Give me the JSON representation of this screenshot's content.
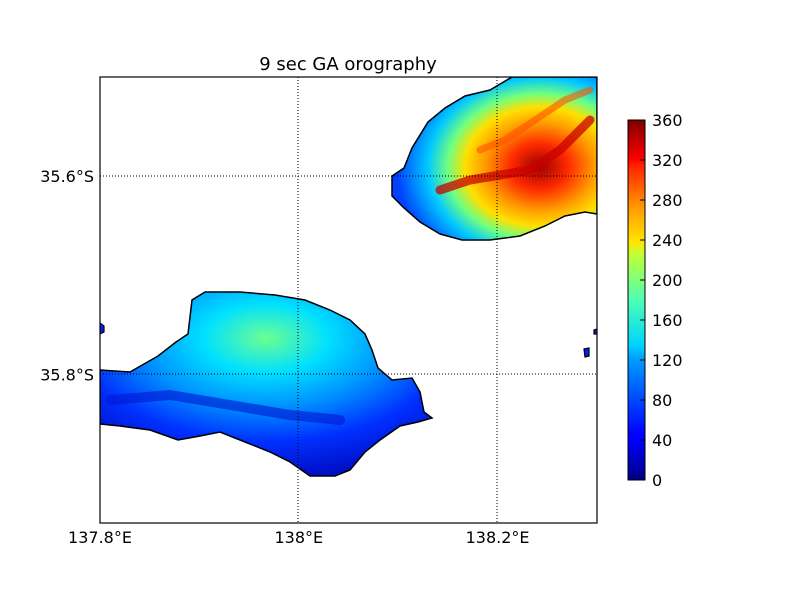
{
  "title": "9 sec GA orography",
  "axes": {
    "lon_ticks": [
      {
        "value": 137.8,
        "label": "137.8°E"
      },
      {
        "value": 138.0,
        "label": "138°E"
      },
      {
        "value": 138.2,
        "label": "138.2°E"
      }
    ],
    "lat_ticks": [
      {
        "value": -35.6,
        "label": "35.6°S"
      },
      {
        "value": -35.8,
        "label": "35.8°S"
      }
    ],
    "lon_range": [
      137.8,
      138.3
    ],
    "lat_range": [
      -35.95,
      -35.5
    ],
    "gridlines": "dotted"
  },
  "colorbar": {
    "colormap": "jet",
    "range": [
      0,
      360
    ],
    "ticks": [
      "0",
      "40",
      "80",
      "120",
      "160",
      "200",
      "240",
      "280",
      "320",
      "360"
    ],
    "placement": "right"
  },
  "chart_data": {
    "type": "heatmap",
    "title": "9 sec GA orography",
    "quantity": "terrain elevation",
    "colormap": "jet",
    "value_range": [
      0,
      360
    ],
    "regions": [
      {
        "description": "landmass top-right (northern area)",
        "elevation_range": [
          40,
          350
        ],
        "peak_near": "138.2°E–138.3°E, 35.55°S–35.6°S"
      },
      {
        "description": "landmass lower-left (southern area)",
        "elevation_range": [
          20,
          170
        ],
        "peak_near": "138°E, 35.75°S"
      }
    ]
  }
}
